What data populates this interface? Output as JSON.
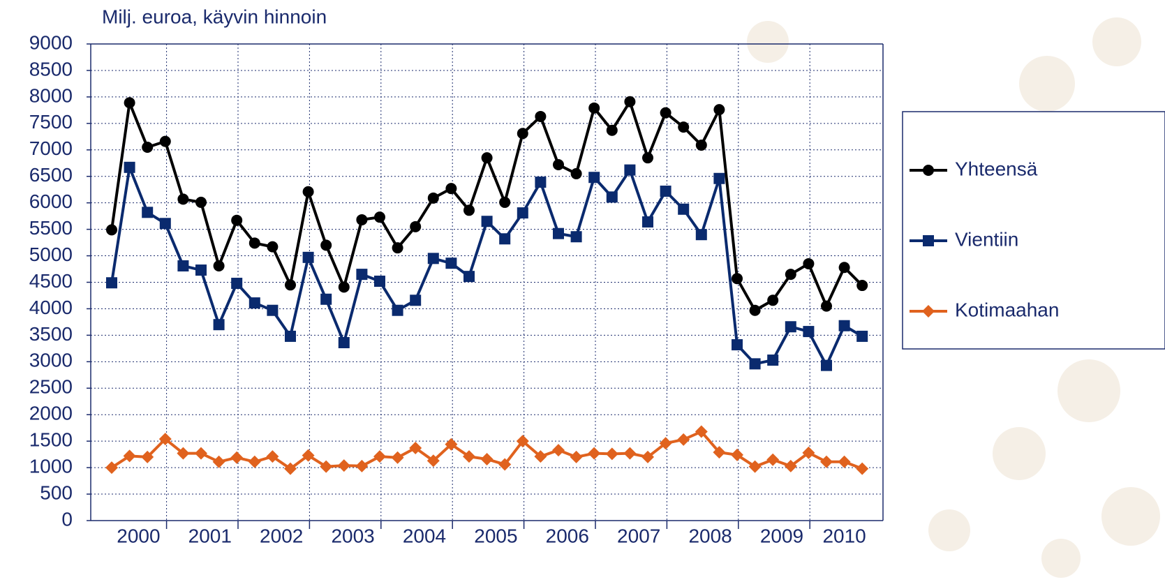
{
  "chart_data": {
    "type": "line",
    "y_label": "Milj. euroa, käyvin hinnoin",
    "categories": [
      "2000",
      null,
      null,
      null,
      "2001",
      null,
      null,
      null,
      "2002",
      null,
      null,
      null,
      "2003",
      null,
      null,
      null,
      "2004",
      null,
      null,
      null,
      "2005",
      null,
      null,
      null,
      "2006",
      null,
      null,
      null,
      "2007",
      null,
      null,
      null,
      "2008",
      null,
      null,
      null,
      "2009",
      null,
      null,
      null,
      "2010",
      null,
      null
    ],
    "series": [
      {
        "name": "Yhteensä",
        "color": "#000000",
        "marker": "circle",
        "values": [
          5490,
          7890,
          7050,
          7160,
          6070,
          6010,
          4810,
          5670,
          5240,
          5170,
          4450,
          6210,
          5200,
          4410,
          5680,
          5730,
          5150,
          5550,
          6090,
          6270,
          5860,
          6850,
          6010,
          7310,
          7630,
          6720,
          6550,
          7790,
          7370,
          7910,
          6850,
          7700,
          7430,
          7090,
          7760,
          4570,
          3970,
          4160,
          4650,
          4850,
          4050,
          4780,
          4440
        ]
      },
      {
        "name": "Vientiin",
        "color": "#0a2a6e",
        "marker": "square",
        "values": [
          4490,
          6670,
          5820,
          5610,
          4810,
          4730,
          3700,
          4480,
          4110,
          3970,
          3480,
          4970,
          4180,
          3360,
          4650,
          4520,
          3970,
          4160,
          4950,
          4860,
          4610,
          5650,
          5320,
          5810,
          6390,
          5420,
          5360,
          6480,
          6110,
          6620,
          5640,
          6220,
          5880,
          5400,
          6460,
          3320,
          2960,
          3030,
          3660,
          3570,
          2930,
          3680,
          3480
        ]
      },
      {
        "name": "Kotimaahan",
        "color": "#e0621e",
        "marker": "diamond",
        "values": [
          1000,
          1220,
          1200,
          1540,
          1270,
          1270,
          1110,
          1190,
          1110,
          1210,
          980,
          1230,
          1020,
          1040,
          1030,
          1210,
          1190,
          1370,
          1130,
          1440,
          1210,
          1160,
          1060,
          1500,
          1210,
          1330,
          1200,
          1270,
          1260,
          1270,
          1200,
          1460,
          1530,
          1680,
          1290,
          1240,
          1020,
          1150,
          1030,
          1280,
          1110,
          1110,
          980
        ]
      }
    ],
    "ylim": [
      0,
      9000
    ],
    "yticks": [
      0,
      500,
      1000,
      1500,
      2000,
      2500,
      3000,
      3500,
      4000,
      4500,
      5000,
      5500,
      6000,
      6500,
      7000,
      7500,
      8000,
      8500,
      9000
    ],
    "grid": true
  }
}
